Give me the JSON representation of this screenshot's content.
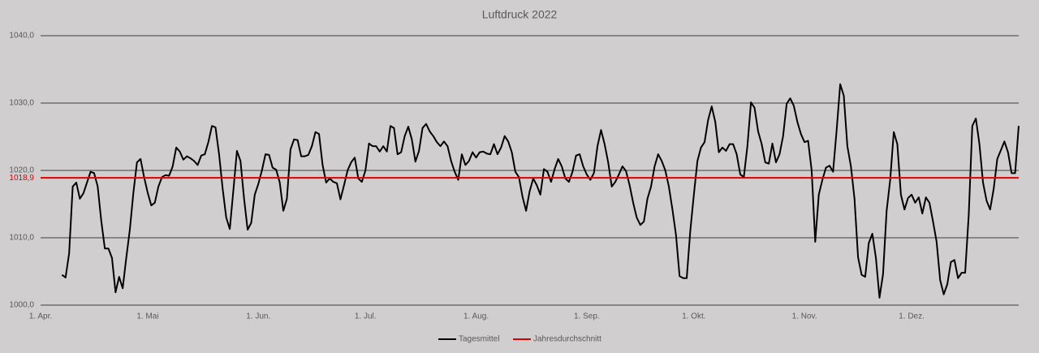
{
  "chart_data": {
    "type": "line",
    "title": "Luftdruck 2022",
    "categories": [
      "1. Apr.",
      null,
      null,
      null,
      null,
      null,
      null,
      null,
      null,
      null,
      null,
      null,
      null,
      null,
      null,
      null,
      null,
      null,
      null,
      null,
      null,
      null,
      null,
      null,
      null,
      null,
      null,
      null,
      null,
      null,
      "1. Mai",
      null,
      null,
      null,
      null,
      null,
      null,
      null,
      null,
      null,
      null,
      null,
      null,
      null,
      null,
      null,
      null,
      null,
      null,
      null,
      null,
      null,
      null,
      null,
      null,
      null,
      null,
      null,
      null,
      null,
      null,
      "1. Jun.",
      null,
      null,
      null,
      null,
      null,
      null,
      null,
      null,
      null,
      null,
      null,
      null,
      null,
      null,
      null,
      null,
      null,
      null,
      null,
      null,
      null,
      null,
      null,
      null,
      null,
      null,
      null,
      null,
      null,
      "1. Jul.",
      null,
      null,
      null,
      null,
      null,
      null,
      null,
      null,
      null,
      null,
      null,
      null,
      null,
      null,
      null,
      null,
      null,
      null,
      null,
      null,
      null,
      null,
      null,
      null,
      null,
      null,
      null,
      null,
      null,
      null,
      "1. Aug.",
      null,
      null,
      null,
      null,
      null,
      null,
      null,
      null,
      null,
      null,
      null,
      null,
      null,
      null,
      null,
      null,
      null,
      null,
      null,
      null,
      null,
      null,
      null,
      null,
      null,
      null,
      null,
      null,
      null,
      null,
      "1. Sep.",
      null,
      null,
      null,
      null,
      null,
      null,
      null,
      null,
      null,
      null,
      null,
      null,
      null,
      null,
      null,
      null,
      null,
      null,
      null,
      null,
      null,
      null,
      null,
      null,
      null,
      null,
      null,
      null,
      null,
      "1. Okt.",
      null,
      null,
      null,
      null,
      null,
      null,
      null,
      null,
      null,
      null,
      null,
      null,
      null,
      null,
      null,
      null,
      null,
      null,
      null,
      null,
      null,
      null,
      null,
      null,
      null,
      null,
      null,
      null,
      null,
      null,
      "1. Nov.",
      null,
      null,
      null,
      null,
      null,
      null,
      null,
      null,
      null,
      null,
      null,
      null,
      null,
      null,
      null,
      null,
      null,
      null,
      null,
      null,
      null,
      null,
      null,
      null,
      null,
      null,
      null,
      null,
      null,
      "1. Dez.",
      null,
      null,
      null,
      null,
      null,
      null,
      null,
      null,
      null,
      null,
      null,
      null,
      null,
      null,
      null,
      null,
      null,
      null,
      null,
      null,
      null,
      null,
      null,
      null,
      null,
      null,
      null,
      null,
      null,
      null
    ],
    "series": [
      {
        "name": "Tagesmittel",
        "color": "#000000",
        "values": [
          null,
          null,
          null,
          null,
          null,
          null,
          1004.5,
          1004.1,
          1007.7,
          1017.6,
          1018.2,
          1015.8,
          1016.6,
          1018.2,
          1019.8,
          1019.6,
          1017.6,
          1012.5,
          1008.4,
          1008.4,
          1007,
          1001.9,
          1004.2,
          1002.5,
          1007,
          1011.2,
          1016.7,
          1021.2,
          1021.7,
          1019,
          1016.7,
          1014.8,
          1015.2,
          1017.6,
          1019,
          1019.3,
          1019.2,
          1020.6,
          1023.4,
          1022.8,
          1021.6,
          1022.1,
          1021.8,
          1021.4,
          1020.8,
          1022.2,
          1022.4,
          1024.2,
          1026.6,
          1026.4,
          1022.4,
          1017.3,
          1013,
          1011.3,
          1017,
          1022.9,
          1021.4,
          1015.8,
          1011.2,
          1012.2,
          1016.4,
          1018,
          1020,
          1022.4,
          1022.3,
          1020.4,
          1020.1,
          1018.2,
          1014,
          1015.8,
          1023.1,
          1024.6,
          1024.5,
          1022.1,
          1022.1,
          1022.3,
          1023.6,
          1025.7,
          1025.4,
          1020.8,
          1018.2,
          1018.8,
          1018.3,
          1018.1,
          1015.7,
          1017.8,
          1020,
          1021.2,
          1021.9,
          1018.8,
          1018.3,
          1020,
          1024,
          1023.6,
          1023.6,
          1022.8,
          1023.6,
          1022.8,
          1026.6,
          1026.3,
          1022.4,
          1022.7,
          1025.1,
          1026.5,
          1024.6,
          1021.3,
          1022.9,
          1026.3,
          1026.9,
          1025.8,
          1025.1,
          1024.2,
          1023.6,
          1024.3,
          1023.6,
          1021.4,
          1019.8,
          1018.6,
          1022.4,
          1020.8,
          1021.4,
          1022.7,
          1021.9,
          1022.7,
          1022.8,
          1022.5,
          1022.4,
          1023.9,
          1022.4,
          1023.4,
          1025.1,
          1024.3,
          1022.7,
          1019.8,
          1019,
          1016.1,
          1014,
          1016.9,
          1018.8,
          1017.8,
          1016.4,
          1020.2,
          1019.8,
          1018.3,
          1020.2,
          1021.7,
          1020.6,
          1018.8,
          1018.3,
          1019.8,
          1022.2,
          1022.4,
          1020.6,
          1019.4,
          1018.6,
          1019.6,
          1023.6,
          1026,
          1023.9,
          1021.2,
          1017.6,
          1018.3,
          1019.4,
          1020.6,
          1019.9,
          1017.8,
          1015.2,
          1013,
          1011.9,
          1012.4,
          1015.8,
          1017.6,
          1020.6,
          1022.4,
          1021.4,
          1020,
          1017.6,
          1014.2,
          1010.4,
          1004.3,
          1004,
          1004,
          1011,
          1016.4,
          1021.4,
          1023.4,
          1024.2,
          1027.5,
          1029.5,
          1027.2,
          1022.7,
          1023.4,
          1022.9,
          1023.9,
          1023.9,
          1022.4,
          1019.4,
          1019,
          1023.6,
          1030.1,
          1029.3,
          1025.8,
          1023.9,
          1021.2,
          1021,
          1024,
          1021.2,
          1022.4,
          1025.1,
          1029.9,
          1030.7,
          1029.6,
          1027.2,
          1025.4,
          1024.2,
          1024.4,
          1020,
          1009.4,
          1016.4,
          1018.6,
          1020.4,
          1020.7,
          1019.8,
          1026,
          1032.8,
          1031.1,
          1023.6,
          1020.6,
          1015.8,
          1007.1,
          1004.5,
          1004.2,
          1009.2,
          1010.6,
          1007,
          1001.1,
          1004.6,
          1014,
          1018.6,
          1025.7,
          1023.9,
          1016.4,
          1014.2,
          1015.9,
          1016.4,
          1015.2,
          1016,
          1013.6,
          1016,
          1015.2,
          1012.4,
          1009.4,
          1003.7,
          1001.6,
          1003.1,
          1006.4,
          1006.7,
          1004,
          1004.8,
          1004.8,
          1013.4,
          1026.6,
          1027.7,
          1023.9,
          1018.2,
          1015.5,
          1014.2,
          1017.3,
          1021.7,
          1023,
          1024.3,
          1022.7,
          1019.6,
          1019.6,
          1026.6
        ]
      },
      {
        "name": "Jahresdurchschnitt",
        "color": "#e00000",
        "value": 1018.9,
        "value_label": "1018,9"
      }
    ],
    "ylim": [
      1000,
      1040
    ],
    "yticks": [
      {
        "value": 1000,
        "label": "1000,0"
      },
      {
        "value": 1010,
        "label": "1010,0"
      },
      {
        "value": 1020,
        "label": "1020,0"
      },
      {
        "value": 1030,
        "label": "1030,0"
      },
      {
        "value": 1040,
        "label": "1040,0"
      }
    ],
    "grid": true,
    "legend": "bottom"
  }
}
